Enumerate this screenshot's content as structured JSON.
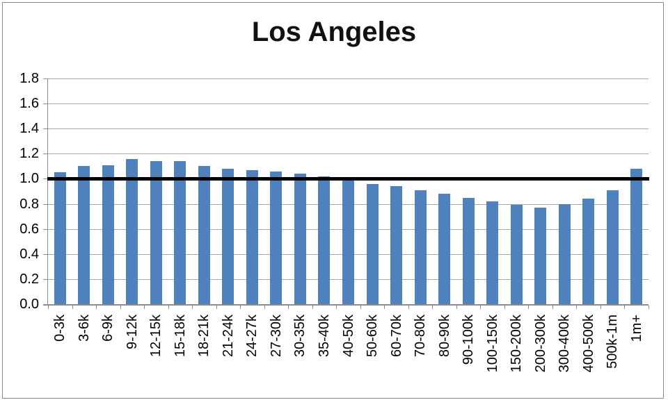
{
  "chart_data": {
    "type": "bar",
    "title": "Los Angeles",
    "categories": [
      "0-3k",
      "3-6k",
      "6-9k",
      "9-12k",
      "12-15k",
      "15-18k",
      "18-21k",
      "21-24k",
      "24-27k",
      "27-30k",
      "30-35k",
      "35-40k",
      "40-50k",
      "50-60k",
      "60-70k",
      "70-80k",
      "80-90k",
      "90-100k",
      "100-150k",
      "150-200k",
      "200-300k",
      "300-400k",
      "400-500k",
      "500k-1m",
      "1m+"
    ],
    "values": [
      1.05,
      1.1,
      1.11,
      1.16,
      1.14,
      1.14,
      1.1,
      1.08,
      1.07,
      1.06,
      1.04,
      1.02,
      0.99,
      0.96,
      0.94,
      0.91,
      0.88,
      0.85,
      0.82,
      0.79,
      0.77,
      0.8,
      0.84,
      0.91,
      1.08
    ],
    "xlabel": "",
    "ylabel": "",
    "ylim": [
      0,
      1.8
    ],
    "y_tick_step": 0.2,
    "y_tick_labels": [
      "0.0",
      "0.2",
      "0.4",
      "0.6",
      "0.8",
      "1.0",
      "1.2",
      "1.4",
      "1.6",
      "1.8"
    ],
    "reference_line_y": 1.0,
    "grid": true,
    "legend": "none",
    "x_tick_label_rotation": -90,
    "colors": {
      "bar": "#4F81BD",
      "reference_line": "#000000",
      "gridline": "#A6A6A6",
      "axis": "#8C8C8C",
      "text": "#000000",
      "border": "#8A8A8A",
      "background": "#FFFFFF"
    }
  }
}
